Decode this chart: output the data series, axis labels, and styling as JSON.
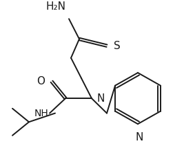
{
  "background_color": "#ffffff",
  "line_color": "#1a1a1a",
  "line_width": 1.4,
  "font_size": 10,
  "figsize": [
    2.67,
    2.24
  ],
  "dpi": 100,
  "xlim": [
    0,
    267
  ],
  "ylim": [
    0,
    224
  ]
}
